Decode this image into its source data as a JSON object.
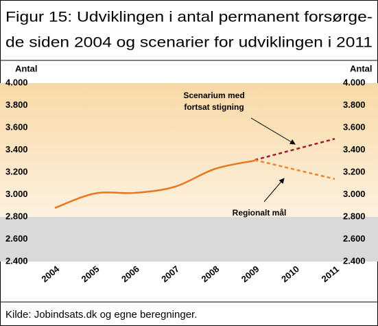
{
  "chart_data": {
    "type": "line",
    "title": [
      "Figur 15: Udviklingen i antal permanent forsørge-",
      "de siden 2004 og scenarier for udviklingen i 2011"
    ],
    "ylabel": "Antal",
    "y2label": "Antal",
    "categories": [
      "2004",
      "2005",
      "2006",
      "2007",
      "2008",
      "2009",
      "2010",
      "2011"
    ],
    "xlim": [
      2004,
      2011
    ],
    "xticks": [
      2004,
      2005,
      2006,
      2007,
      2008,
      2009,
      2010,
      2011
    ],
    "ylim": [
      2400,
      4000
    ],
    "yticks": [
      {
        "value": 2400,
        "label": "2.400"
      },
      {
        "value": 2600,
        "label": "2.600"
      },
      {
        "value": 2800,
        "label": "2.800"
      },
      {
        "value": 3000,
        "label": "3.000"
      },
      {
        "value": 3200,
        "label": "3.200"
      },
      {
        "value": 3400,
        "label": "3.400"
      },
      {
        "value": 3600,
        "label": "3.600"
      },
      {
        "value": 3800,
        "label": "3.800"
      },
      {
        "value": 4000,
        "label": "4.000"
      }
    ],
    "y2lim": [
      2400,
      4000
    ],
    "y2ticks": [
      {
        "value": 2400,
        "label": "2.400"
      },
      {
        "value": 2600,
        "label": "2.600"
      },
      {
        "value": 2800,
        "label": "2.800"
      },
      {
        "value": 3000,
        "label": "3.000"
      },
      {
        "value": 3200,
        "label": "3.200"
      },
      {
        "value": 3400,
        "label": "3.400"
      },
      {
        "value": 3600,
        "label": "3.600"
      },
      {
        "value": 3800,
        "label": "3.800"
      },
      {
        "value": 4000,
        "label": "4.000"
      }
    ],
    "series": [
      {
        "color": "#e8761e",
        "dashed": false,
        "x": [
          2004,
          2005,
          2006,
          2007,
          2008,
          2009
        ],
        "values": [
          2880,
          3010,
          3015,
          3070,
          3230,
          3305
        ]
      },
      {
        "color": "#a3182b",
        "dashed": true,
        "x": [
          2009,
          2011
        ],
        "values": [
          3310,
          3500
        ]
      },
      {
        "color": "#f0822a",
        "dashed": true,
        "x": [
          2009,
          2011
        ],
        "values": [
          3310,
          3140
        ]
      }
    ],
    "annotations": [
      [
        "Scenarium med",
        "fortsat stigning"
      ],
      [
        "Regionalt mål"
      ]
    ],
    "source": "Kilde: Jobindsats.dk og egne beregninger."
  }
}
